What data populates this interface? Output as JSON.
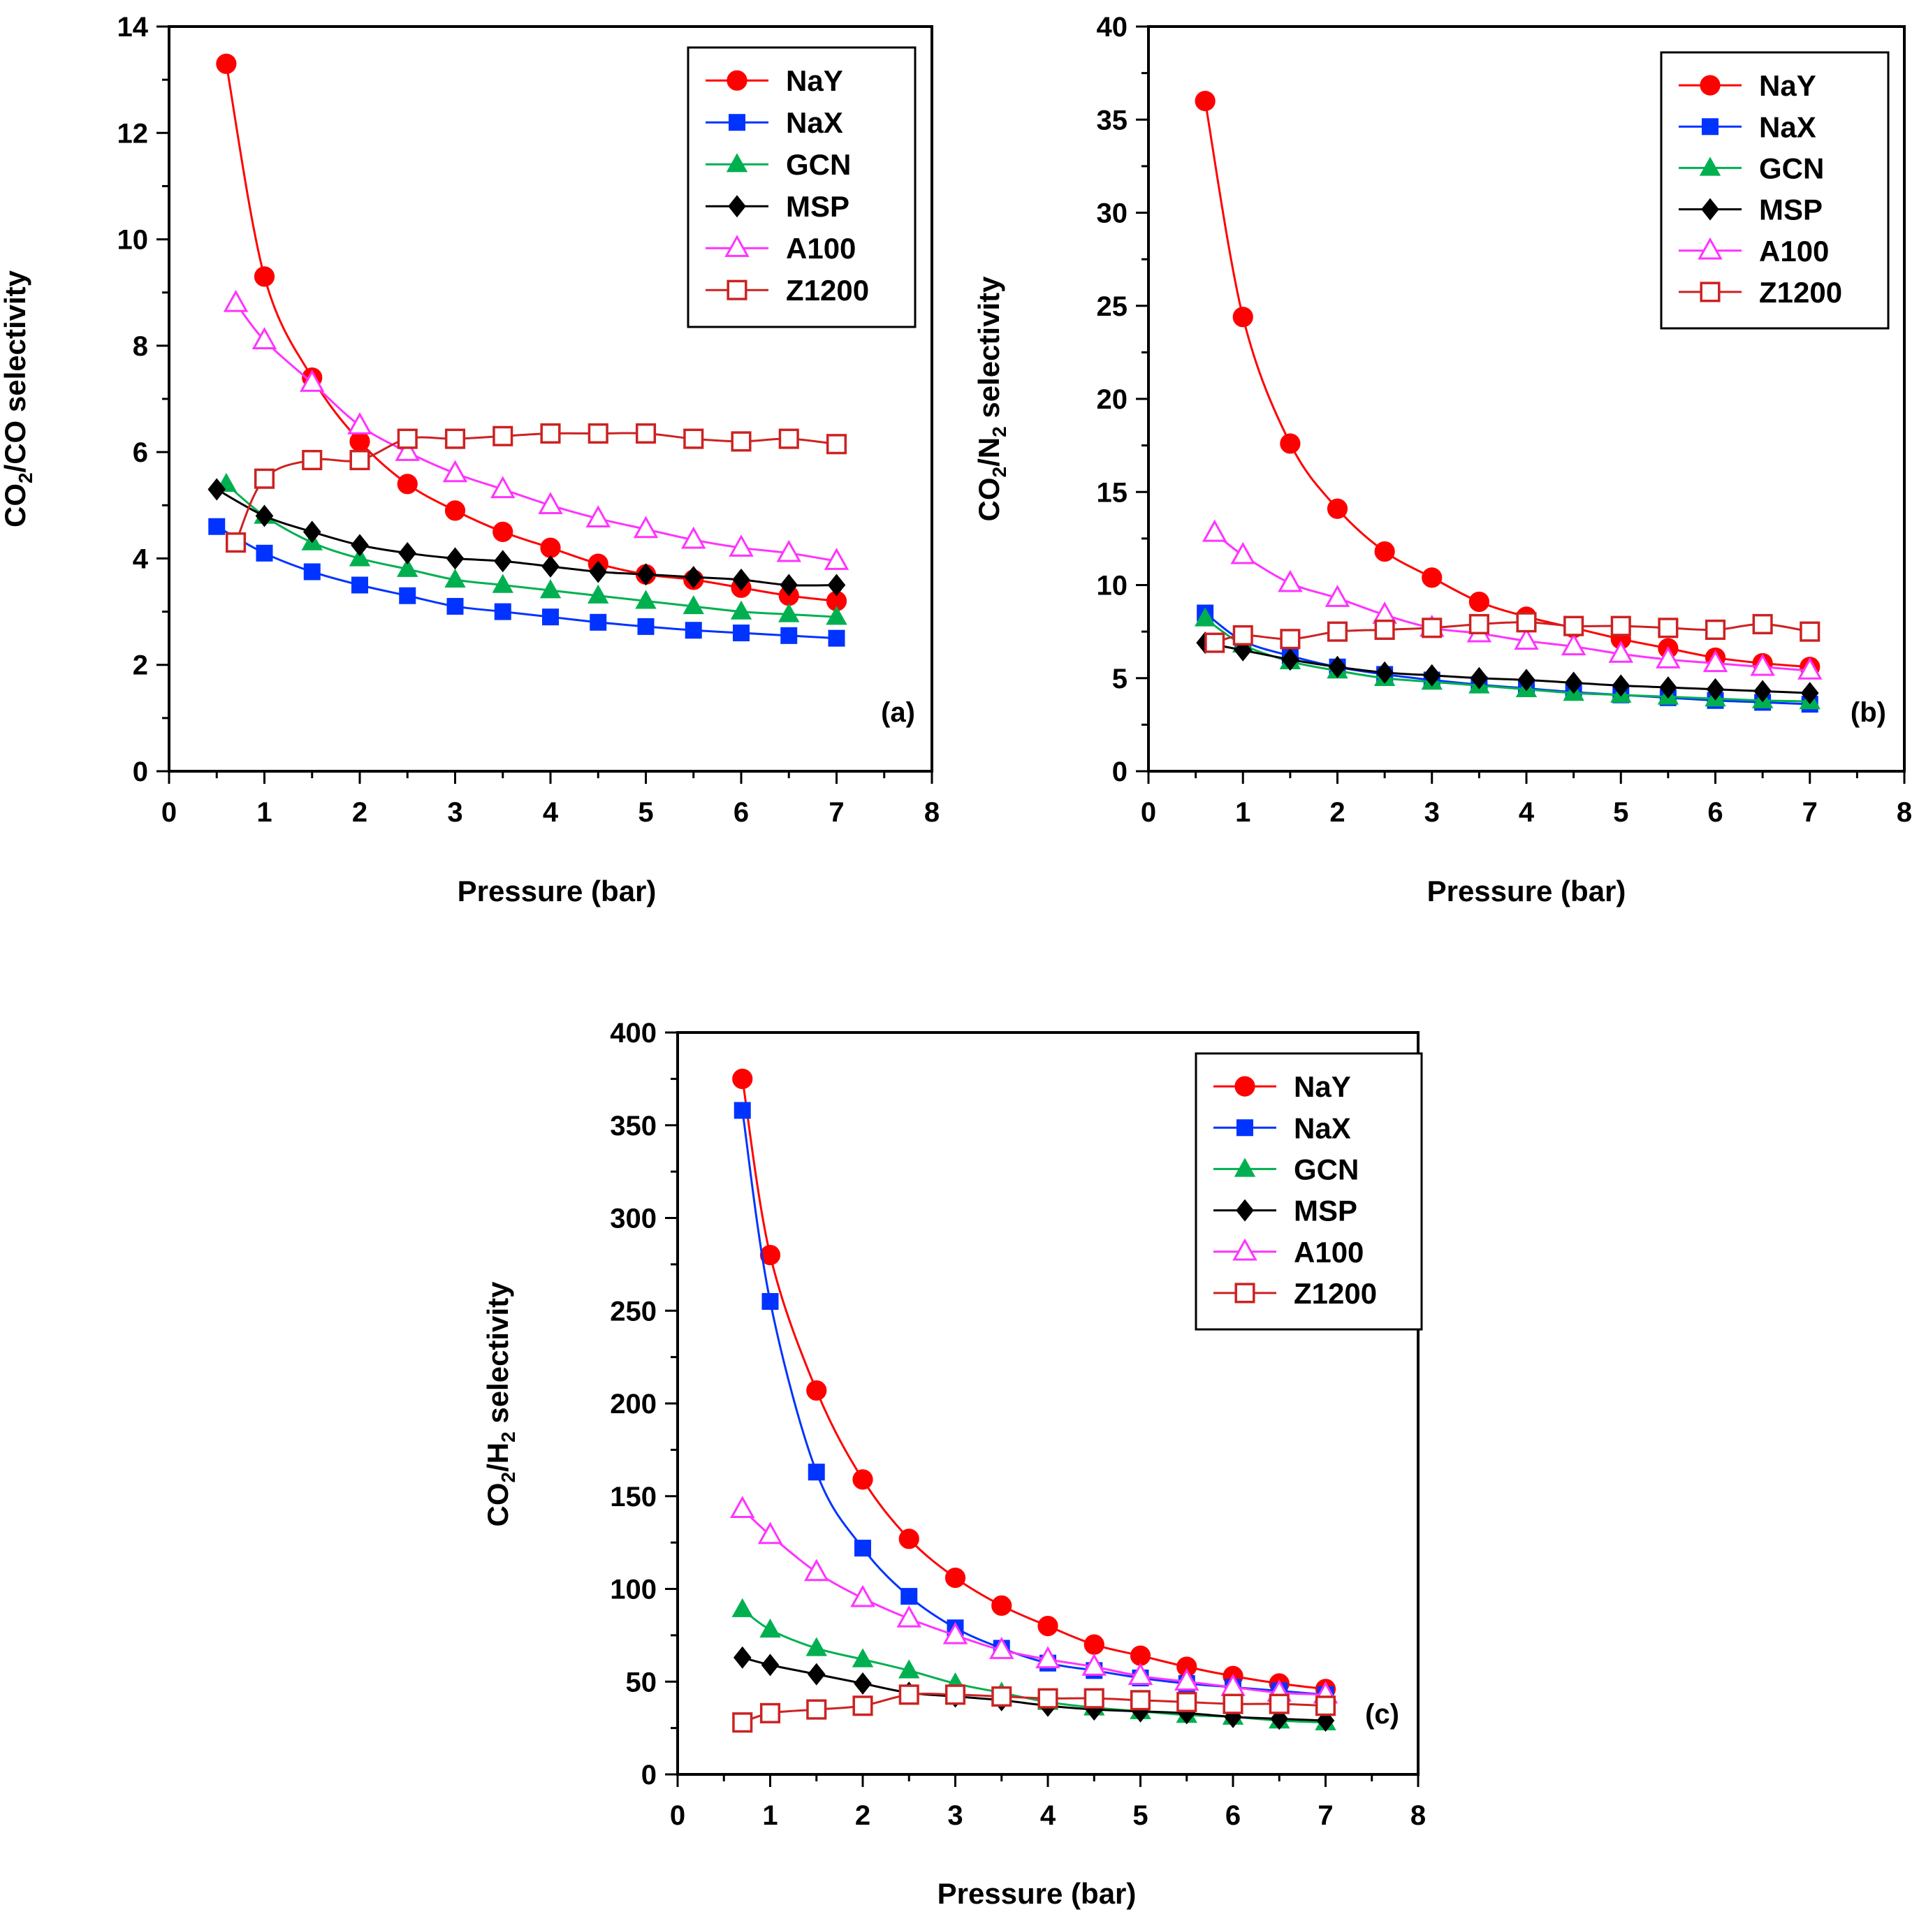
{
  "colors": {
    "NaY": "#ff0000",
    "NaX": "#0033ff",
    "GCN": "#00b050",
    "MSP": "#000000",
    "A100": "#ff33ff",
    "Z1200": "#cc2222"
  },
  "chart_data": [
    {
      "type": "line",
      "panel": "(a)",
      "xlabel": "Pressure (bar)",
      "ylabel": {
        "pre": "CO",
        "sub": "2",
        "post": "/CO selectivity"
      },
      "xlim": [
        0,
        8
      ],
      "ylim": [
        0,
        14
      ],
      "xticks": [
        0,
        1,
        2,
        3,
        4,
        5,
        6,
        7,
        8
      ],
      "yticks": [
        0,
        2,
        4,
        6,
        8,
        10,
        12,
        14
      ],
      "grid": false,
      "legend": "top-right",
      "series": [
        {
          "name": "NaY",
          "marker": "circle",
          "x": [
            0.6,
            1,
            1.5,
            2,
            2.5,
            3,
            3.5,
            4,
            4.5,
            5,
            5.5,
            6,
            6.5,
            7
          ],
          "y": [
            13.3,
            9.3,
            7.4,
            6.2,
            5.4,
            4.9,
            4.5,
            4.2,
            3.9,
            3.7,
            3.6,
            3.45,
            3.3,
            3.2
          ]
        },
        {
          "name": "NaX",
          "marker": "square",
          "x": [
            0.5,
            1,
            1.5,
            2,
            2.5,
            3,
            3.5,
            4,
            4.5,
            5,
            5.5,
            6,
            6.5,
            7
          ],
          "y": [
            4.6,
            4.1,
            3.75,
            3.5,
            3.3,
            3.1,
            3.0,
            2.9,
            2.8,
            2.72,
            2.65,
            2.6,
            2.55,
            2.5
          ]
        },
        {
          "name": "GCN",
          "marker": "triangle",
          "x": [
            0.6,
            1,
            1.5,
            2,
            2.5,
            3,
            3.5,
            4,
            4.5,
            5,
            5.5,
            6,
            6.5,
            7
          ],
          "y": [
            5.4,
            4.8,
            4.3,
            4.0,
            3.8,
            3.6,
            3.5,
            3.4,
            3.3,
            3.2,
            3.1,
            3.0,
            2.95,
            2.9
          ]
        },
        {
          "name": "MSP",
          "marker": "diamond",
          "x": [
            0.5,
            1,
            1.5,
            2,
            2.5,
            3,
            3.5,
            4,
            4.5,
            5,
            5.5,
            6,
            6.5,
            7
          ],
          "y": [
            5.3,
            4.8,
            4.5,
            4.25,
            4.1,
            4.0,
            3.95,
            3.85,
            3.75,
            3.7,
            3.65,
            3.6,
            3.5,
            3.5
          ]
        },
        {
          "name": "A100",
          "marker": "triangle-open",
          "x": [
            0.7,
            1,
            1.5,
            2,
            2.5,
            3,
            3.5,
            4,
            4.5,
            5,
            5.5,
            6,
            6.5,
            7
          ],
          "y": [
            8.8,
            8.1,
            7.3,
            6.5,
            6.0,
            5.6,
            5.3,
            5.0,
            4.75,
            4.55,
            4.35,
            4.2,
            4.1,
            3.95
          ]
        },
        {
          "name": "Z1200",
          "marker": "square-open",
          "x": [
            0.7,
            1,
            1.5,
            2,
            2.5,
            3,
            3.5,
            4,
            4.5,
            5,
            5.5,
            6,
            6.5,
            7
          ],
          "y": [
            4.3,
            5.5,
            5.85,
            5.85,
            6.25,
            6.25,
            6.3,
            6.35,
            6.35,
            6.35,
            6.25,
            6.2,
            6.25,
            6.15
          ]
        }
      ]
    },
    {
      "type": "line",
      "panel": "(b)",
      "xlabel": "Pressure (bar)",
      "ylabel": {
        "pre": "CO",
        "sub": "2",
        "post": "/N",
        "sub2": "2",
        "post2": " selectivity"
      },
      "xlim": [
        0,
        8
      ],
      "ylim": [
        0,
        40
      ],
      "xticks": [
        0,
        1,
        2,
        3,
        4,
        5,
        6,
        7,
        8
      ],
      "yticks": [
        0,
        5,
        10,
        15,
        20,
        25,
        30,
        35,
        40
      ],
      "grid": false,
      "legend": "top-right",
      "series": [
        {
          "name": "NaY",
          "marker": "circle",
          "x": [
            0.6,
            1,
            1.5,
            2,
            2.5,
            3,
            3.5,
            4,
            4.5,
            5,
            5.5,
            6,
            6.5,
            7
          ],
          "y": [
            36.0,
            24.4,
            17.6,
            14.1,
            11.8,
            10.4,
            9.1,
            8.3,
            7.7,
            7.1,
            6.6,
            6.1,
            5.8,
            5.6
          ]
        },
        {
          "name": "NaX",
          "marker": "square",
          "x": [
            0.6,
            1,
            1.5,
            2,
            2.5,
            3,
            3.5,
            4,
            4.5,
            5,
            5.5,
            6,
            6.5,
            7
          ],
          "y": [
            8.5,
            7.0,
            6.2,
            5.6,
            5.2,
            4.9,
            4.65,
            4.45,
            4.25,
            4.1,
            3.95,
            3.8,
            3.7,
            3.6
          ]
        },
        {
          "name": "GCN",
          "marker": "triangle",
          "x": [
            0.6,
            1,
            1.5,
            2,
            2.5,
            3,
            3.5,
            4,
            4.5,
            5,
            5.5,
            6,
            6.5,
            7
          ],
          "y": [
            8.2,
            6.8,
            5.9,
            5.4,
            5.0,
            4.8,
            4.6,
            4.4,
            4.2,
            4.1,
            4.0,
            3.9,
            3.8,
            3.75
          ]
        },
        {
          "name": "MSP",
          "marker": "diamond",
          "x": [
            0.6,
            1,
            1.5,
            2,
            2.5,
            3,
            3.5,
            4,
            4.5,
            5,
            5.5,
            6,
            6.5,
            7
          ],
          "y": [
            6.9,
            6.5,
            6.0,
            5.6,
            5.3,
            5.15,
            5.0,
            4.9,
            4.75,
            4.6,
            4.5,
            4.4,
            4.3,
            4.2
          ]
        },
        {
          "name": "A100",
          "marker": "triangle-open",
          "x": [
            0.7,
            1,
            1.5,
            2,
            2.5,
            3,
            3.5,
            4,
            4.5,
            5,
            5.5,
            6,
            6.5,
            7
          ],
          "y": [
            12.8,
            11.6,
            10.1,
            9.3,
            8.4,
            7.7,
            7.4,
            7.0,
            6.7,
            6.3,
            6.0,
            5.8,
            5.6,
            5.4
          ]
        },
        {
          "name": "Z1200",
          "marker": "square-open",
          "x": [
            0.7,
            1,
            1.5,
            2,
            2.5,
            3,
            3.5,
            4,
            4.5,
            5,
            5.5,
            6,
            6.5,
            7
          ],
          "y": [
            6.9,
            7.3,
            7.1,
            7.5,
            7.6,
            7.7,
            7.9,
            8.0,
            7.8,
            7.8,
            7.7,
            7.6,
            7.9,
            7.5
          ]
        }
      ]
    },
    {
      "type": "line",
      "panel": "(c)",
      "xlabel": "Pressure (bar)",
      "ylabel": {
        "pre": "CO",
        "sub": "2",
        "post": "/H",
        "sub2": "2",
        "post2": " selectivity"
      },
      "xlim": [
        0,
        8
      ],
      "ylim": [
        0,
        400
      ],
      "xticks": [
        0,
        1,
        2,
        3,
        4,
        5,
        6,
        7,
        8
      ],
      "yticks": [
        0,
        50,
        100,
        150,
        200,
        250,
        300,
        350,
        400
      ],
      "grid": false,
      "legend": "top-right",
      "series": [
        {
          "name": "NaY",
          "marker": "circle",
          "x": [
            0.7,
            1,
            1.5,
            2,
            2.5,
            3,
            3.5,
            4,
            4.5,
            5,
            5.5,
            6,
            6.5,
            7
          ],
          "y": [
            375,
            280,
            207,
            159,
            127,
            106,
            91,
            80,
            70,
            64,
            58,
            53,
            49,
            46
          ]
        },
        {
          "name": "NaX",
          "marker": "square",
          "x": [
            0.7,
            1,
            1.5,
            2,
            2.5,
            3,
            3.5,
            4,
            4.5,
            5,
            5.5,
            6,
            6.5,
            7
          ],
          "y": [
            358,
            255,
            163,
            122,
            96,
            79,
            68,
            60,
            56,
            52,
            49,
            47,
            45,
            43
          ]
        },
        {
          "name": "GCN",
          "marker": "triangle",
          "x": [
            0.7,
            1,
            1.5,
            2,
            2.5,
            3,
            3.5,
            4,
            4.5,
            5,
            5.5,
            6,
            6.5,
            7
          ],
          "y": [
            89,
            78,
            68,
            62,
            56,
            49,
            44,
            39,
            36,
            34,
            32,
            31,
            29,
            28
          ]
        },
        {
          "name": "MSP",
          "marker": "diamond",
          "x": [
            0.7,
            1,
            1.5,
            2,
            2.5,
            3,
            3.5,
            4,
            4.5,
            5,
            5.5,
            6,
            6.5,
            7
          ],
          "y": [
            63,
            59,
            54,
            49,
            44,
            42,
            40,
            37,
            35,
            34,
            33,
            31,
            30,
            29
          ]
        },
        {
          "name": "A100",
          "marker": "triangle-open",
          "x": [
            0.7,
            1,
            1.5,
            2,
            2.5,
            3,
            3.5,
            4,
            4.5,
            5,
            5.5,
            6,
            6.5,
            7
          ],
          "y": [
            143,
            129,
            109,
            95,
            84,
            75,
            67,
            62,
            58,
            53,
            50,
            47,
            44,
            43
          ]
        },
        {
          "name": "Z1200",
          "marker": "square-open",
          "x": [
            0.7,
            1,
            1.5,
            2,
            2.5,
            3,
            3.5,
            4,
            4.5,
            5,
            5.5,
            6,
            6.5,
            7
          ],
          "y": [
            28,
            33,
            35,
            37,
            43,
            43,
            42,
            41,
            41,
            40,
            39,
            38,
            38,
            37
          ]
        }
      ]
    }
  ]
}
